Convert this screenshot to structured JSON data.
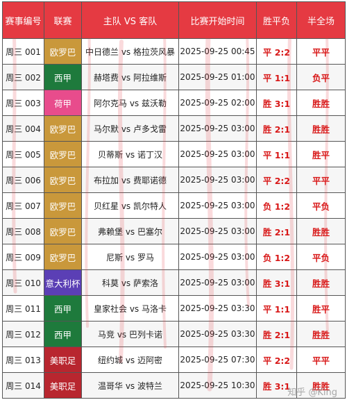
{
  "headers": [
    "赛事编号",
    "联赛",
    "主队 VS 客队",
    "比赛开始时间",
    "胜平负",
    "半全场"
  ],
  "colors": {
    "header_bg": "#e53a42",
    "score_text": "#d81818",
    "league_europa": "#c9983b",
    "league_laliga": "#1e7a3c",
    "league_eredivisie": "#e84c8c",
    "league_serie_a": "#5b3fb5",
    "league_mls": "#b8262f"
  },
  "rows": [
    {
      "id": "周三 001",
      "league": "欧罗巴",
      "league_color": "#c9983b",
      "match": "中日德兰 vs 格拉茨风暴",
      "time": "2025-09-25 00:45",
      "result": "平 2:2",
      "half_full": "平平"
    },
    {
      "id": "周三 002",
      "league": "西甲",
      "league_color": "#1e7a3c",
      "match": "赫塔费 vs 阿拉维斯",
      "time": "2025-09-25 01:00",
      "result": "平 1:1",
      "half_full": "负平"
    },
    {
      "id": "周三 003",
      "league": "荷甲",
      "league_color": "#e84c8c",
      "match": "阿尔克马 vs 兹沃勒",
      "time": "2025-09-25 02:00",
      "result": "胜 3:1",
      "half_full": "胜胜"
    },
    {
      "id": "周三 004",
      "league": "欧罗巴",
      "league_color": "#c9983b",
      "match": "马尔默 vs 卢多戈雷",
      "time": "2025-09-25 03:00",
      "result": "胜 2:1",
      "half_full": "胜胜"
    },
    {
      "id": "周三 005",
      "league": "欧罗巴",
      "league_color": "#c9983b",
      "match": "贝蒂斯 vs 诺丁汉",
      "time": "2025-09-25 03:00",
      "result": "平 1:1",
      "half_full": "胜平"
    },
    {
      "id": "周三 006",
      "league": "欧罗巴",
      "league_color": "#c9983b",
      "match": "布拉加 vs 费耶诺德",
      "time": "2025-09-25 03:00",
      "result": "平 2:2",
      "half_full": "平平"
    },
    {
      "id": "周三 007",
      "league": "欧罗巴",
      "league_color": "#c9983b",
      "match": "贝红星 vs 凯尔特人",
      "time": "2025-09-25 03:00",
      "result": "负 1:2",
      "half_full": "平负"
    },
    {
      "id": "周三 008",
      "league": "欧罗巴",
      "league_color": "#c9983b",
      "match": "弗赖堡 vs 巴塞尔",
      "time": "2025-09-25 03:00",
      "result": "胜 2:1",
      "half_full": "胜胜"
    },
    {
      "id": "周三 009",
      "league": "欧罗巴",
      "league_color": "#c9983b",
      "match": "尼斯 vs 罗马",
      "time": "2025-09-25 03:00",
      "result": "负 1:2",
      "half_full": "平负"
    },
    {
      "id": "周三 010",
      "league": "意大利杯",
      "league_color": "#5b3fb5",
      "match": "科莫 vs 萨索洛",
      "time": "2025-09-25 03:00",
      "result": "胜 3:1",
      "half_full": "胜胜"
    },
    {
      "id": "周三 011",
      "league": "西甲",
      "league_color": "#1e7a3c",
      "match": "皇家社会 vs 马洛卡",
      "time": "2025-09-25 03:30",
      "result": "平 1:1",
      "half_full": "胜平"
    },
    {
      "id": "周三 012",
      "league": "西甲",
      "league_color": "#1e7a3c",
      "match": "马竞 vs 巴列卡诺",
      "time": "2025-09-25 03:30",
      "result": "胜 2:1",
      "half_full": "胜胜"
    },
    {
      "id": "周三 013",
      "league": "美职足",
      "league_color": "#b8262f",
      "match": "纽约城 vs 迈阿密",
      "time": "2025-09-25 07:30",
      "result": "平 2:2",
      "half_full": "平平"
    },
    {
      "id": "周三 014",
      "league": "美职足",
      "league_color": "#b8262f",
      "match": "温哥华 vs 波特兰",
      "time": "2025-09-25 10:30",
      "result": "胜 3:1",
      "half_full": "胜胜"
    }
  ],
  "watermark": "知乎 @King"
}
